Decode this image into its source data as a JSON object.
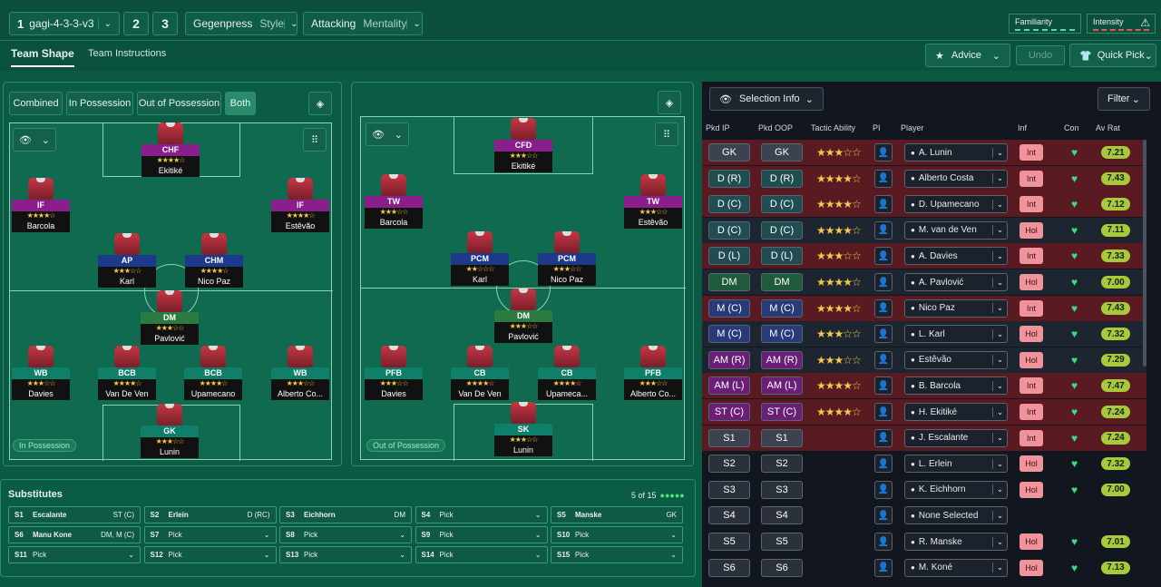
{
  "tactic": {
    "slot": "1",
    "name": "gagi-4-3-3-v3",
    "slot2": "2",
    "slot3": "3",
    "style_value": "Gegenpress",
    "style_label": "Style",
    "mentality_value": "Attacking",
    "mentality_label": "Mentality",
    "familiarity": "Familiarity",
    "intensity": "Intensity"
  },
  "tabs": {
    "shape": "Team Shape",
    "instructions": "Team Instructions"
  },
  "toolbar": {
    "advice": "Advice",
    "undo": "Undo",
    "quick_pick": "Quick Pick"
  },
  "view_tabs": [
    "Combined",
    "In Possession",
    "Out of Possession",
    "Both"
  ],
  "left_label": "In Possession",
  "right_label": "Out of Possession",
  "ip_players": [
    {
      "role": "CHF",
      "stars": "★★★★☆",
      "name": "Ekitiké",
      "color": "rp"
    },
    {
      "role": "IF",
      "stars": "★★★★☆",
      "name": "Barcola",
      "color": "rp"
    },
    {
      "role": "IF",
      "stars": "★★★★☆",
      "name": "Estêvão",
      "color": "rp"
    },
    {
      "role": "AP",
      "stars": "★★★☆☆",
      "name": "Karl",
      "color": "rb"
    },
    {
      "role": "CHM",
      "stars": "★★★★☆",
      "name": "Nico Paz",
      "color": "rb"
    },
    {
      "role": "DM",
      "stars": "★★★☆☆",
      "name": "Pavlović",
      "color": "rg"
    },
    {
      "role": "WB",
      "stars": "★★★☆☆",
      "name": "Davies",
      "color": "rt"
    },
    {
      "role": "BCB",
      "stars": "★★★★☆",
      "name": "Van De Ven",
      "color": "rt"
    },
    {
      "role": "BCB",
      "stars": "★★★★☆",
      "name": "Upamecano",
      "color": "rt"
    },
    {
      "role": "WB",
      "stars": "★★★☆☆",
      "name": "Alberto Co...",
      "color": "rt"
    },
    {
      "role": "GK",
      "stars": "★★★☆☆",
      "name": "Lunin",
      "color": "rt"
    }
  ],
  "oop_players": [
    {
      "role": "CFD",
      "stars": "★★★☆☆",
      "name": "Ekitiké",
      "color": "rp"
    },
    {
      "role": "TW",
      "stars": "★★★☆☆",
      "name": "Barcola",
      "color": "rp"
    },
    {
      "role": "TW",
      "stars": "★★★☆☆",
      "name": "Estêvão",
      "color": "rp"
    },
    {
      "role": "PCM",
      "stars": "★★☆☆☆",
      "name": "Karl",
      "color": "rb"
    },
    {
      "role": "PCM",
      "stars": "★★★☆☆",
      "name": "Nico Paz",
      "color": "rb"
    },
    {
      "role": "DM",
      "stars": "★★★☆☆",
      "name": "Pavlović",
      "color": "rg"
    },
    {
      "role": "PFB",
      "stars": "★★★☆☆",
      "name": "Davies",
      "color": "rt"
    },
    {
      "role": "CB",
      "stars": "★★★★☆",
      "name": "Van De Ven",
      "color": "rt"
    },
    {
      "role": "CB",
      "stars": "★★★★☆",
      "name": "Upameca...",
      "color": "rt"
    },
    {
      "role": "PFB",
      "stars": "★★★☆☆",
      "name": "Alberto Co...",
      "color": "rt"
    },
    {
      "role": "SK",
      "stars": "★★★☆☆",
      "name": "Lunin",
      "color": "rt"
    }
  ],
  "selection": {
    "info": "Selection Info",
    "filter": "Filter",
    "headers": [
      "Pkd IP",
      "Pkd OOP",
      "Tactic Ability",
      "PI",
      "Player",
      "Inf",
      "Con",
      "Av Rat"
    ]
  },
  "rows": [
    {
      "ip": "GK",
      "oop": "GK",
      "stars": "★★★☆☆",
      "player": "A. Lunin",
      "inf": "Int",
      "rat": "7.21",
      "bg": "#5a1a22",
      "pc": "#3c4350"
    },
    {
      "ip": "D (R)",
      "oop": "D (R)",
      "stars": "★★★★☆",
      "player": "Alberto Costa",
      "inf": "Int",
      "rat": "7.43",
      "bg": "#5a1a22",
      "pc": "#1f4d52"
    },
    {
      "ip": "D (C)",
      "oop": "D (C)",
      "stars": "★★★★☆",
      "player": "D. Upamecano",
      "inf": "Int",
      "rat": "7.12",
      "bg": "#5a1a22",
      "pc": "#1f4d52"
    },
    {
      "ip": "D (C)",
      "oop": "D (C)",
      "stars": "★★★★☆",
      "player": "M. van de Ven",
      "inf": "Hol",
      "rat": "7.11",
      "bg": "#1c2530",
      "pc": "#1f4d52"
    },
    {
      "ip": "D (L)",
      "oop": "D (L)",
      "stars": "★★★☆☆",
      "player": "A. Davies",
      "inf": "Int",
      "rat": "7.33",
      "bg": "#5a1a22",
      "pc": "#1f4d52"
    },
    {
      "ip": "DM",
      "oop": "DM",
      "stars": "★★★★☆",
      "player": "A. Pavlović",
      "inf": "Hol",
      "rat": "7.00",
      "bg": "#1c2530",
      "pc": "#1f5a3a"
    },
    {
      "ip": "M (C)",
      "oop": "M (C)",
      "stars": "★★★★☆",
      "player": "Nico Paz",
      "inf": "Int",
      "rat": "7.43",
      "bg": "#5a1a22",
      "pc": "#283a78"
    },
    {
      "ip": "M (C)",
      "oop": "M (C)",
      "stars": "★★★☆☆",
      "player": "L. Karl",
      "inf": "Hol",
      "rat": "7.32",
      "bg": "#1c2530",
      "pc": "#283a78"
    },
    {
      "ip": "AM (R)",
      "oop": "AM (R)",
      "stars": "★★★☆☆",
      "player": "Estêvão",
      "inf": "Hol",
      "rat": "7.29",
      "bg": "#1c2530",
      "pc": "#6a1e78"
    },
    {
      "ip": "AM (L)",
      "oop": "AM (L)",
      "stars": "★★★★☆",
      "player": "B. Barcola",
      "inf": "Int",
      "rat": "7.47",
      "bg": "#5a1a22",
      "pc": "#6a1e78"
    },
    {
      "ip": "ST (C)",
      "oop": "ST (C)",
      "stars": "★★★★☆",
      "player": "H. Ekitiké",
      "inf": "Int",
      "rat": "7.24",
      "bg": "#5a1a22",
      "pc": "#6a1e78"
    },
    {
      "ip": "S1",
      "oop": "S1",
      "stars": "",
      "player": "J. Escalante",
      "inf": "Int",
      "rat": "7.24",
      "bg": "#5a1a22",
      "pc": "#3c4350"
    },
    {
      "ip": "S2",
      "oop": "S2",
      "stars": "",
      "player": "L. Erlein",
      "inf": "Hol",
      "rat": "7.32",
      "bg": "#12171f",
      "pc": "#2a313b"
    },
    {
      "ip": "S3",
      "oop": "S3",
      "stars": "",
      "player": "K. Eichhorn",
      "inf": "Hol",
      "rat": "7.00",
      "bg": "#12171f",
      "pc": "#2a313b"
    },
    {
      "ip": "S4",
      "oop": "S4",
      "stars": "",
      "player": "None Selected",
      "inf": "",
      "rat": "",
      "bg": "#12171f",
      "pc": "#2a313b"
    },
    {
      "ip": "S5",
      "oop": "S5",
      "stars": "",
      "player": "R. Manske",
      "inf": "Hol",
      "rat": "7.01",
      "bg": "#12171f",
      "pc": "#2a313b"
    },
    {
      "ip": "S6",
      "oop": "S6",
      "stars": "",
      "player": "M. Koné",
      "inf": "Hol",
      "rat": "7.13",
      "bg": "#12171f",
      "pc": "#2a313b"
    }
  ],
  "subs": {
    "title": "Substitutes",
    "count": "5 of 15",
    "items": [
      {
        "k": "S1",
        "n": "Escalante",
        "p": "ST (C)"
      },
      {
        "k": "S2",
        "n": "Erlein",
        "p": "D (RC)"
      },
      {
        "k": "S3",
        "n": "Eichhorn",
        "p": "DM"
      },
      {
        "k": "S4",
        "n": "Pick",
        "p": "⌄"
      },
      {
        "k": "S5",
        "n": "Manske",
        "p": "GK"
      },
      {
        "k": "S6",
        "n": "Manu Kone",
        "p": "DM, M (C)"
      },
      {
        "k": "S7",
        "n": "Pick",
        "p": "⌄"
      },
      {
        "k": "S8",
        "n": "Pick",
        "p": "⌄"
      },
      {
        "k": "S9",
        "n": "Pick",
        "p": "⌄"
      },
      {
        "k": "S10",
        "n": "Pick",
        "p": "⌄"
      },
      {
        "k": "S11",
        "n": "Pick",
        "p": "⌄"
      },
      {
        "k": "S12",
        "n": "Pick",
        "p": "⌄"
      },
      {
        "k": "S13",
        "n": "Pick",
        "p": "⌄"
      },
      {
        "k": "S14",
        "n": "Pick",
        "p": "⌄"
      },
      {
        "k": "S15",
        "n": "Pick",
        "p": "⌄"
      }
    ]
  }
}
